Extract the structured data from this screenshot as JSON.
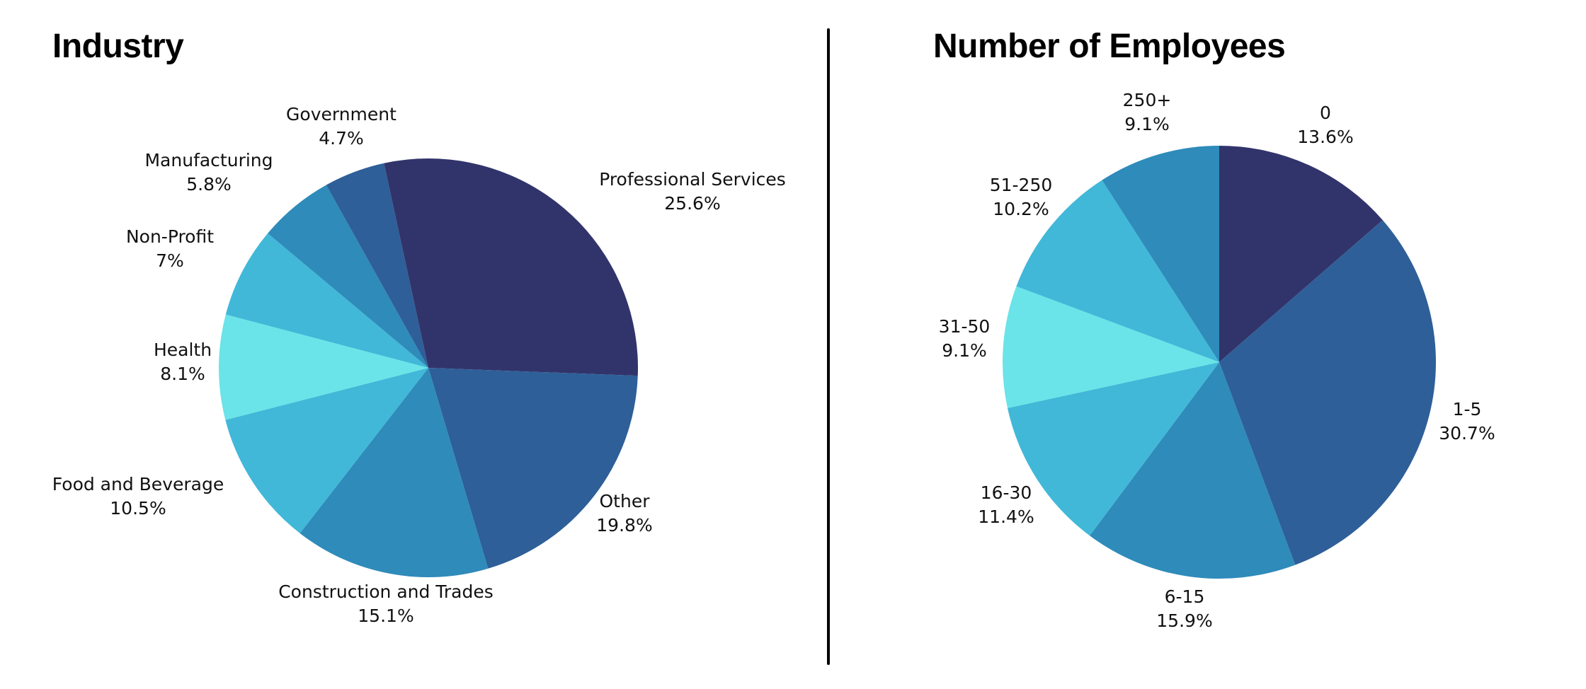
{
  "chart_data": [
    {
      "type": "pie",
      "title": "Industry",
      "colors": [
        "#31346b",
        "#2e5f98",
        "#2e8bba",
        "#41b8d8",
        "#6ae4e8",
        "#41b8d8",
        "#2e8bba",
        "#2e5f98",
        "#31346b"
      ],
      "slices": [
        {
          "label": "Professional Services",
          "value": 25.6,
          "display": "25.6%"
        },
        {
          "label": "Other",
          "value": 19.8,
          "display": "19.8%"
        },
        {
          "label": "Construction and Trades",
          "value": 15.1,
          "display": "15.1%"
        },
        {
          "label": "Food and Beverage",
          "value": 10.5,
          "display": "10.5%"
        },
        {
          "label": "Health",
          "value": 8.1,
          "display": "8.1%"
        },
        {
          "label": "Non-Profit",
          "value": 7.0,
          "display": "7%"
        },
        {
          "label": "Manufacturing",
          "value": 5.8,
          "display": "5.8%"
        },
        {
          "label": "Government",
          "value": 4.7,
          "display": "4.7%"
        },
        {
          "label": "",
          "value": 3.4,
          "display": ""
        }
      ]
    },
    {
      "type": "pie",
      "title": "Number of Employees",
      "colors": [
        "#31346b",
        "#2e5f98",
        "#2e8bba",
        "#41b8d8",
        "#6ae4e8",
        "#41b8d8",
        "#2e8bba"
      ],
      "slices": [
        {
          "label": "0",
          "value": 13.6,
          "display": "13.6%"
        },
        {
          "label": "1-5",
          "value": 30.7,
          "display": "30.7%"
        },
        {
          "label": "6-15",
          "value": 15.9,
          "display": "15.9%"
        },
        {
          "label": "16-30",
          "value": 11.4,
          "display": "11.4%"
        },
        {
          "label": "31-50",
          "value": 9.1,
          "display": "9.1%"
        },
        {
          "label": "51-250",
          "value": 10.2,
          "display": "10.2%"
        },
        {
          "label": "250+",
          "value": 9.1,
          "display": "9.1%"
        }
      ]
    }
  ]
}
